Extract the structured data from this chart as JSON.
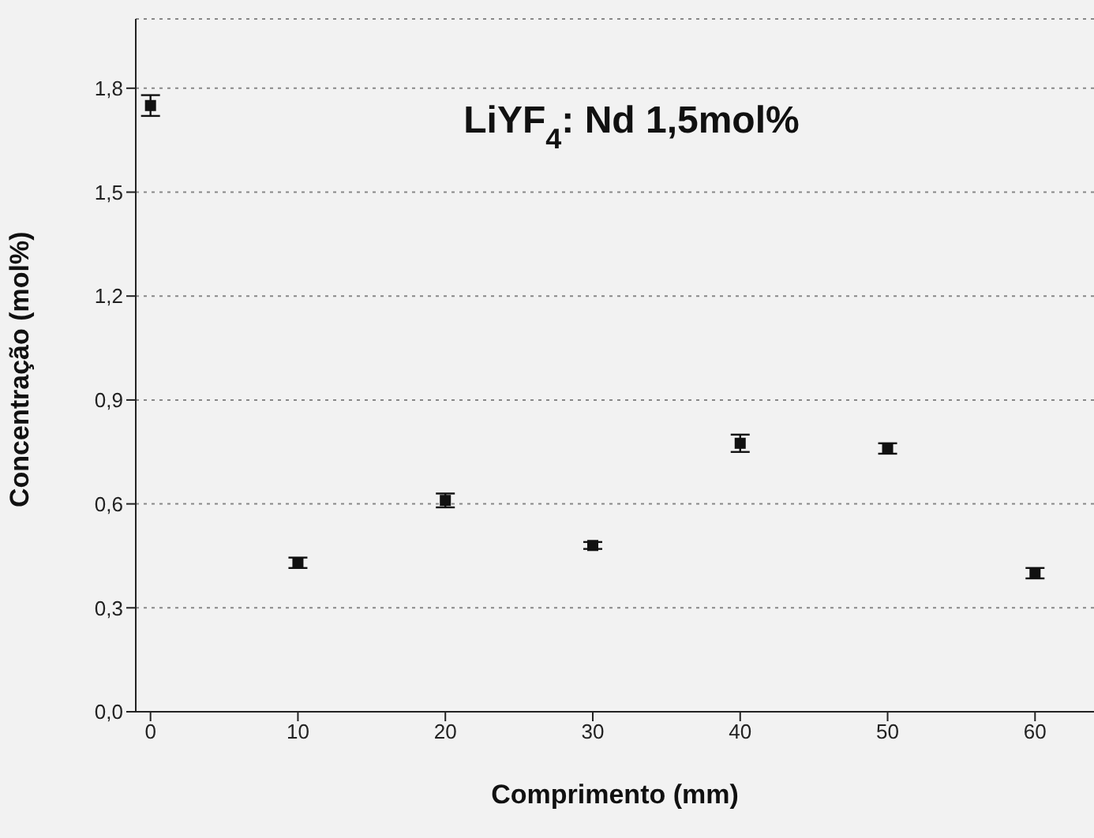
{
  "chart_data": {
    "type": "scatter",
    "title": "LiYF$_{4}$: Nd 1,5mol%",
    "xlabel": "Comprimento (mm)",
    "ylabel": "Concentração (mol%)",
    "x": [
      0,
      10,
      20,
      30,
      40,
      50,
      60
    ],
    "values": [
      1.75,
      0.43,
      0.61,
      0.48,
      0.775,
      0.76,
      0.4
    ],
    "errors": [
      0.03,
      0.015,
      0.02,
      0.01,
      0.025,
      0.015,
      0.015
    ],
    "color": "#111111",
    "marker": "square",
    "grid": "y",
    "xlim": [
      -1,
      64
    ],
    "xticks": [
      0,
      10,
      20,
      30,
      40,
      50,
      60
    ],
    "ylim": [
      0,
      2.0
    ],
    "yticks": [
      {
        "value": 0,
        "label": "0,0"
      },
      {
        "value": 0.3,
        "label": "0,3"
      },
      {
        "value": 0.6,
        "label": "0,6"
      },
      {
        "value": 0.9,
        "label": "0,9"
      },
      {
        "value": 1.2,
        "label": "1,2"
      },
      {
        "value": 1.5,
        "label": "1,5"
      },
      {
        "value": 1.8,
        "label": "1,8"
      }
    ]
  }
}
